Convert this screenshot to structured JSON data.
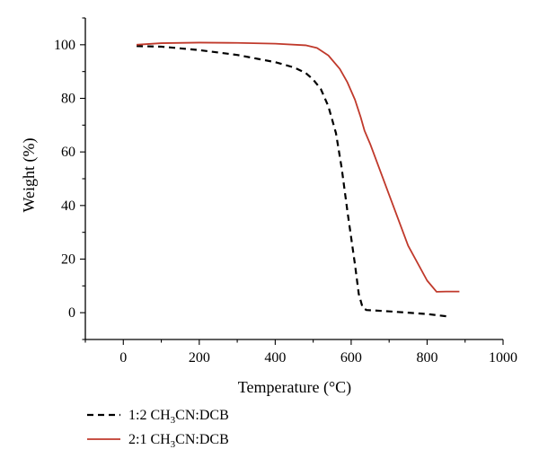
{
  "chart_data": {
    "type": "line",
    "xlabel": "Temperature (°C)",
    "ylabel": "Weight (%)",
    "xlim": [
      -100,
      1000
    ],
    "ylim": [
      -10,
      110
    ],
    "xticks": [
      0,
      200,
      400,
      600,
      800,
      1000
    ],
    "yticks": [
      0,
      20,
      40,
      60,
      80,
      100
    ],
    "grid": false,
    "legend_position": "bottom-left",
    "series": [
      {
        "name": "1:2 CH3CN:DCB",
        "label_parts": [
          "1:2 CH",
          "3",
          "CN:DCB"
        ],
        "color": "#000000",
        "style": "dashed",
        "x": [
          35,
          100,
          200,
          300,
          400,
          450,
          480,
          500,
          520,
          540,
          560,
          575,
          590,
          600,
          610,
          620,
          630,
          640,
          700,
          800,
          860
        ],
        "y": [
          99.5,
          99.3,
          98.0,
          96.2,
          93.5,
          91.5,
          89.5,
          87.0,
          83.5,
          77.0,
          67.0,
          54.0,
          38.0,
          28.0,
          18.0,
          7.0,
          2.0,
          1.0,
          0.5,
          -0.5,
          -1.5
        ]
      },
      {
        "name": "2:1 CH3CN:DCB",
        "label_parts": [
          "2:1 CH",
          "3",
          "CN:DCB"
        ],
        "color": "#c0392b",
        "style": "solid",
        "x": [
          35,
          100,
          200,
          300,
          400,
          480,
          510,
          540,
          570,
          590,
          610,
          625,
          635,
          650,
          700,
          750,
          800,
          825,
          850,
          885
        ],
        "y": [
          100.0,
          100.6,
          100.8,
          100.7,
          100.4,
          99.8,
          98.8,
          96.0,
          91.0,
          86.0,
          79.5,
          73.0,
          68.0,
          63.0,
          44.0,
          25.0,
          12.0,
          7.8,
          7.9,
          7.9
        ]
      }
    ]
  }
}
